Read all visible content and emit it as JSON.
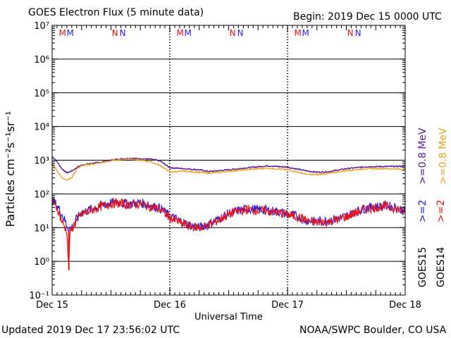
{
  "header": {
    "title": "GOES Electron Flux (5 minute data)",
    "begin": "Begin: 2019 Dec 15 0000 UTC"
  },
  "footer": {
    "updated": "Updated 2019 Dec 17 23:56:02 UTC",
    "credit": "NOAA/SWPC Boulder, CO USA"
  },
  "colors": {
    "goes15_2mev": "#2323e8",
    "goes14_2mev": "#ee1111",
    "goes15_08mev": "#5a1a96",
    "goes14_08mev": "#f0a020",
    "grid": "#000000"
  },
  "chart_data": {
    "type": "line",
    "title": "GOES Electron Flux (5 minute data)",
    "xlabel": "Universal Time",
    "ylabel": "Particles cm⁻²s⁻¹sr⁻¹",
    "y_scale": "log",
    "ylim": [
      0.1,
      10000000
    ],
    "xlim": [
      "2019-12-15 00:00",
      "2019-12-18 00:00"
    ],
    "x_ticks": [
      "Dec 15",
      "Dec 16",
      "Dec 17",
      "Dec 18"
    ],
    "y_ticks": [
      "10⁻¹",
      "10⁰",
      "10¹",
      "10²",
      "10³",
      "10⁴",
      "10⁵",
      "10⁶",
      "10⁷"
    ],
    "threshold_line": 1000,
    "legend_right": [
      {
        "label": ">=0.8 MeV",
        "color": "#f0a020"
      },
      {
        "label": ">=0.8 MeV",
        "color": "#5a1a96"
      },
      {
        "label": ">=2",
        "color": "#ee1111"
      },
      {
        "label": ">=2",
        "color": "#2323e8"
      },
      {
        "label": "GOES14",
        "color": "#000000"
      },
      {
        "label": "GOES15",
        "color": "#000000"
      }
    ],
    "unit_legend": "MeV",
    "markers": [
      {
        "day": 0,
        "letters": [
          {
            "t": "M",
            "c": "#ee1111"
          },
          {
            "t": "M",
            "c": "#2323e8"
          }
        ],
        "hour": 2.8
      },
      {
        "day": 0,
        "letters": [
          {
            "t": "N",
            "c": "#ee1111"
          },
          {
            "t": "N",
            "c": "#2323e8"
          }
        ],
        "hour": 13.6
      },
      {
        "day": 1,
        "letters": [
          {
            "t": "M",
            "c": "#ee1111"
          },
          {
            "t": "M",
            "c": "#2323e8"
          }
        ],
        "hour": 2.8
      },
      {
        "day": 1,
        "letters": [
          {
            "t": "N",
            "c": "#ee1111"
          },
          {
            "t": "N",
            "c": "#2323e8"
          }
        ],
        "hour": 13.6
      },
      {
        "day": 2,
        "letters": [
          {
            "t": "M",
            "c": "#ee1111"
          },
          {
            "t": "M",
            "c": "#2323e8"
          }
        ],
        "hour": 2.8
      },
      {
        "day": 2,
        "letters": [
          {
            "t": "N",
            "c": "#ee1111"
          },
          {
            "t": "N",
            "c": "#2323e8"
          }
        ],
        "hour": 13.6
      }
    ],
    "series": [
      {
        "key": "goes15_08",
        "color": "#5a1a96",
        "x_hours": [
          0,
          1,
          2,
          3,
          4,
          5,
          6,
          8,
          10,
          12,
          14,
          16,
          18,
          20,
          22,
          24,
          27,
          30,
          32,
          36,
          40,
          44,
          48,
          52,
          54,
          56,
          60,
          64,
          68,
          72
        ],
        "values": [
          1300,
          900,
          550,
          420,
          480,
          600,
          720,
          800,
          880,
          1000,
          1100,
          1150,
          1100,
          1080,
          950,
          600,
          560,
          520,
          460,
          520,
          600,
          680,
          620,
          480,
          440,
          450,
          560,
          640,
          650,
          660
        ]
      },
      {
        "key": "goes14_08",
        "color": "#f0a020",
        "x_hours": [
          0,
          1,
          2,
          3,
          4,
          5,
          6,
          8,
          10,
          12,
          14,
          16,
          18,
          20,
          22,
          24,
          27,
          30,
          32,
          36,
          40,
          44,
          48,
          52,
          54,
          56,
          60,
          64,
          68,
          72
        ],
        "values": [
          800,
          500,
          300,
          260,
          300,
          550,
          680,
          760,
          840,
          950,
          1050,
          1100,
          1000,
          900,
          700,
          450,
          470,
          440,
          410,
          470,
          530,
          580,
          520,
          380,
          370,
          400,
          490,
          560,
          560,
          540
        ]
      },
      {
        "key": "goes15_2",
        "color": "#2323e8",
        "x_hours": [
          0,
          1,
          2,
          3,
          3.5,
          4,
          5,
          6,
          8,
          10,
          12,
          14,
          16,
          18,
          20,
          22,
          24,
          26,
          28,
          30,
          32,
          34,
          36,
          38,
          40,
          42,
          44,
          46,
          48,
          50,
          52,
          54,
          56,
          58,
          60,
          62,
          64,
          66,
          68,
          70,
          72
        ],
        "values": [
          65,
          45,
          25,
          12,
          9,
          10,
          18,
          28,
          35,
          45,
          55,
          55,
          50,
          55,
          45,
          38,
          22,
          16,
          12,
          10,
          13,
          18,
          26,
          32,
          36,
          34,
          33,
          30,
          25,
          22,
          16,
          15,
          16,
          18,
          22,
          30,
          38,
          42,
          45,
          40,
          30
        ]
      },
      {
        "key": "goes14_2",
        "color": "#ee1111",
        "x_hours": [
          0,
          1,
          2,
          3,
          3.4,
          3.6,
          4,
          5,
          6,
          8,
          10,
          12,
          14,
          16,
          18,
          20,
          22,
          24,
          26,
          28,
          30,
          32,
          34,
          36,
          38,
          40,
          42,
          44,
          46,
          48,
          50,
          52,
          54,
          56,
          58,
          60,
          62,
          64,
          66,
          68,
          70,
          72
        ],
        "values": [
          60,
          40,
          15,
          8,
          0.55,
          6,
          9,
          16,
          25,
          33,
          42,
          52,
          52,
          48,
          50,
          42,
          35,
          20,
          14,
          11,
          10,
          12,
          17,
          25,
          31,
          35,
          32,
          31,
          28,
          24,
          21,
          16,
          14,
          15,
          17,
          21,
          28,
          36,
          40,
          43,
          38,
          28
        ]
      }
    ]
  }
}
